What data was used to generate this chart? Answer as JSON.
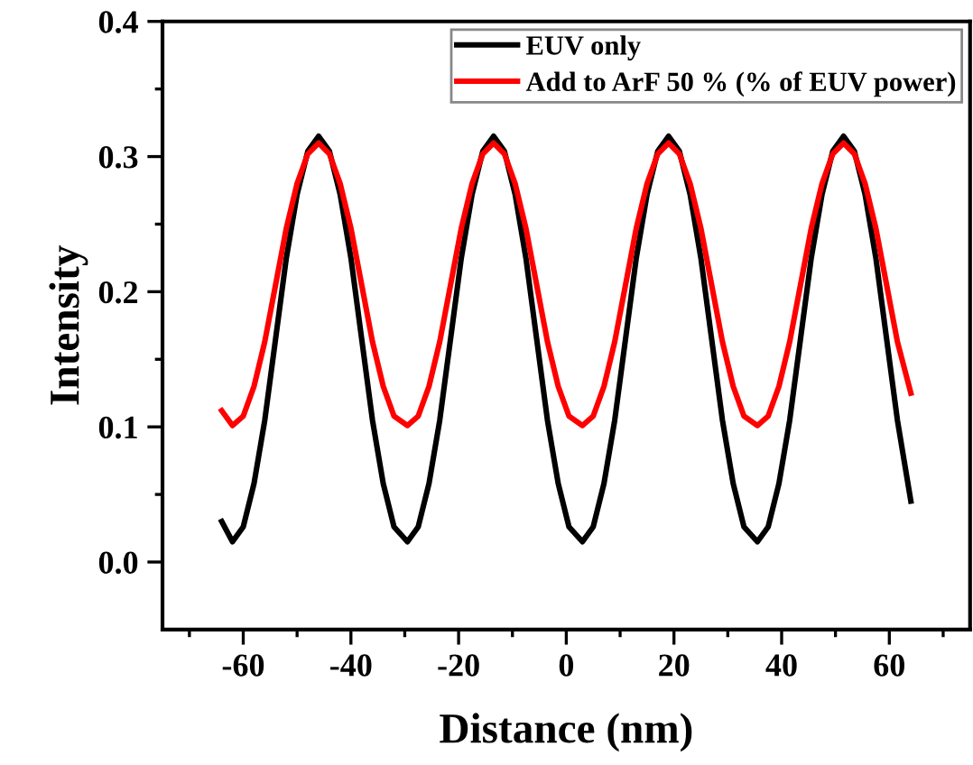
{
  "chart_data": {
    "type": "line",
    "xlabel": "Distance (nm)",
    "ylabel": "Intensity",
    "x": [
      -64,
      -62,
      -60,
      -58,
      -56,
      -54,
      -52,
      -50,
      -48,
      -46,
      -44,
      -42,
      -40,
      -38,
      -36,
      -34,
      -32,
      -29.5,
      -27.5,
      -25.5,
      -23.5,
      -21.5,
      -19.5,
      -17.5,
      -15.5,
      -13.5,
      -11.5,
      -9.5,
      -7.5,
      -5.5,
      -3.5,
      -1.5,
      0.5,
      3,
      5,
      7,
      9,
      11,
      13,
      15,
      17,
      19,
      21,
      23,
      25,
      27,
      29,
      31,
      33,
      35.5,
      37.5,
      39.5,
      41.5,
      43.5,
      45.5,
      47.5,
      49.5,
      51.5,
      53.5,
      55.5,
      57.5,
      59.5,
      61.5,
      64
    ],
    "series": [
      {
        "name": "EUV only",
        "color": "#000000",
        "values": [
          0.03,
          0.015,
          0.026,
          0.058,
          0.105,
          0.165,
          0.225,
          0.272,
          0.304,
          0.315,
          0.304,
          0.272,
          0.225,
          0.165,
          0.105,
          0.058,
          0.026,
          0.015,
          0.026,
          0.058,
          0.105,
          0.165,
          0.225,
          0.272,
          0.304,
          0.315,
          0.304,
          0.272,
          0.225,
          0.165,
          0.105,
          0.058,
          0.026,
          0.015,
          0.026,
          0.058,
          0.105,
          0.165,
          0.225,
          0.272,
          0.304,
          0.315,
          0.304,
          0.272,
          0.225,
          0.165,
          0.105,
          0.058,
          0.026,
          0.015,
          0.026,
          0.058,
          0.105,
          0.165,
          0.225,
          0.272,
          0.304,
          0.315,
          0.304,
          0.272,
          0.225,
          0.165,
          0.105,
          0.045
        ]
      },
      {
        "name": "Add to ArF 50 % (% of EUV power)",
        "color": "#ff0000",
        "values": [
          0.112,
          0.101,
          0.108,
          0.13,
          0.163,
          0.205,
          0.247,
          0.28,
          0.302,
          0.31,
          0.302,
          0.28,
          0.247,
          0.205,
          0.163,
          0.13,
          0.108,
          0.101,
          0.108,
          0.13,
          0.163,
          0.205,
          0.247,
          0.28,
          0.302,
          0.31,
          0.302,
          0.28,
          0.247,
          0.205,
          0.163,
          0.13,
          0.108,
          0.101,
          0.108,
          0.13,
          0.163,
          0.205,
          0.247,
          0.28,
          0.302,
          0.31,
          0.302,
          0.28,
          0.247,
          0.205,
          0.163,
          0.13,
          0.108,
          0.101,
          0.108,
          0.13,
          0.163,
          0.205,
          0.247,
          0.28,
          0.302,
          0.31,
          0.302,
          0.28,
          0.247,
          0.205,
          0.163,
          0.125
        ]
      }
    ],
    "xlim": [
      -75,
      75
    ],
    "xticks": [
      {
        "value": -70,
        "label": null
      },
      -60,
      {
        "value": -50,
        "label": null
      },
      -40,
      {
        "value": -30,
        "label": null
      },
      -20,
      {
        "value": -10,
        "label": null
      },
      0,
      {
        "value": 10,
        "label": null
      },
      20,
      {
        "value": 30,
        "label": null
      },
      40,
      {
        "value": 50,
        "label": null
      },
      60,
      {
        "value": 70,
        "label": null
      }
    ],
    "ylim": [
      -0.05,
      0.4
    ],
    "yticks": [
      {
        "value": 0,
        "label": "0.0"
      },
      {
        "value": 0.05,
        "label": null
      },
      0.1,
      {
        "value": 0.15,
        "label": null
      },
      0.2,
      {
        "value": 0.25,
        "label": null
      },
      0.3,
      {
        "value": 0.35,
        "label": null
      },
      0.4
    ],
    "grid": false,
    "legend": "top right",
    "marker": "none",
    "line_style": "solid"
  }
}
